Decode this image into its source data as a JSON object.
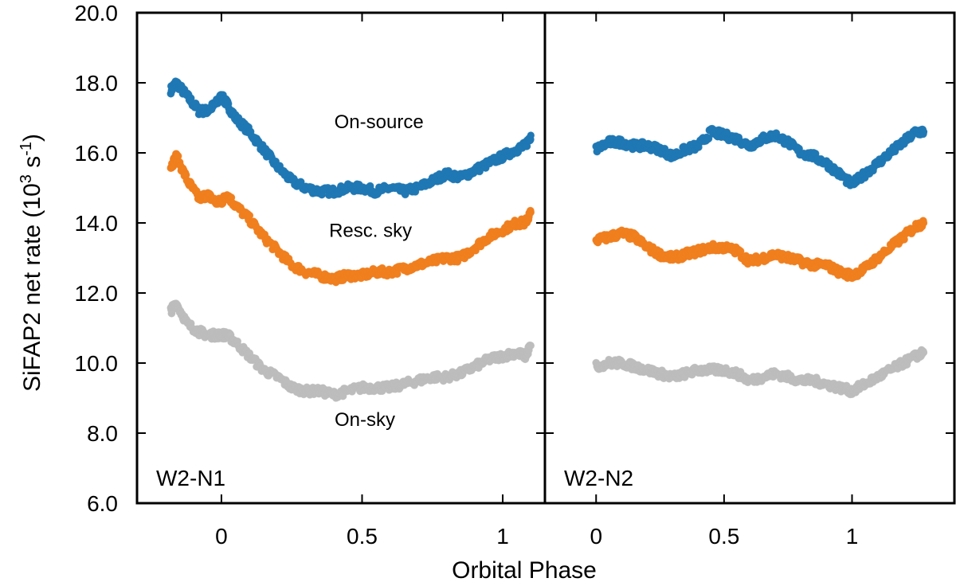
{
  "chart_data": {
    "type": "scatter",
    "ylabel": "SiFAP2 net rate (10",
    "ylabel_exp1": "3",
    "ylabel_unit": " s",
    "ylabel_exp2": "-1",
    "ylabel_close": ")",
    "xlabel": "Orbital Phase",
    "ylim": [
      6.0,
      20.0
    ],
    "yticks": [
      6.0,
      8.0,
      10.0,
      12.0,
      14.0,
      16.0,
      18.0,
      20.0
    ],
    "ytick_labels": [
      "6.0",
      "8.0",
      "10.0",
      "12.0",
      "14.0",
      "16.0",
      "18.0",
      "20.0"
    ],
    "colors": {
      "On-source": "#1f78b4",
      "Resc. sky": "#f07f1e",
      "On-sky": "#bdbdbd"
    },
    "panels": [
      {
        "label": "W2-N1",
        "xlim": [
          -0.3,
          1.15
        ],
        "xticks": [
          0,
          0.5,
          1
        ],
        "xtick_labels": [
          "0",
          "0.5",
          "1"
        ],
        "annotations": [
          {
            "text": "On-source",
            "x": 0.56,
            "y": 16.7
          },
          {
            "text": "Resc. sky",
            "x": 0.53,
            "y": 13.6
          },
          {
            "text": "On-sky",
            "x": 0.51,
            "y": 8.2
          }
        ],
        "series": [
          {
            "name": "On-source",
            "x": [
              -0.18,
              -0.16,
              -0.12,
              -0.08,
              -0.05,
              -0.02,
              0.0,
              0.02,
              0.05,
              0.1,
              0.15,
              0.2,
              0.25,
              0.3,
              0.35,
              0.4,
              0.45,
              0.5,
              0.55,
              0.6,
              0.65,
              0.7,
              0.75,
              0.8,
              0.85,
              0.9,
              0.95,
              1.0,
              1.05,
              1.08,
              1.1
            ],
            "y": [
              17.8,
              18.0,
              17.6,
              17.2,
              17.2,
              17.4,
              17.6,
              17.4,
              17.0,
              16.6,
              16.1,
              15.6,
              15.2,
              15.0,
              14.9,
              14.9,
              15.0,
              15.0,
              14.9,
              15.0,
              14.9,
              15.0,
              15.2,
              15.4,
              15.3,
              15.5,
              15.7,
              15.9,
              16.1,
              16.2,
              16.5
            ]
          },
          {
            "name": "Resc. sky",
            "x": [
              -0.18,
              -0.16,
              -0.12,
              -0.08,
              -0.05,
              -0.02,
              0.0,
              0.02,
              0.05,
              0.1,
              0.15,
              0.2,
              0.25,
              0.3,
              0.35,
              0.4,
              0.45,
              0.5,
              0.55,
              0.6,
              0.65,
              0.7,
              0.75,
              0.8,
              0.85,
              0.9,
              0.95,
              1.0,
              1.05,
              1.08,
              1.1
            ],
            "y": [
              15.6,
              15.9,
              15.2,
              14.7,
              14.8,
              14.6,
              14.6,
              14.8,
              14.5,
              14.1,
              13.6,
              13.2,
              12.8,
              12.6,
              12.5,
              12.4,
              12.5,
              12.5,
              12.6,
              12.6,
              12.7,
              12.8,
              12.9,
              13.0,
              13.0,
              13.3,
              13.6,
              13.8,
              14.0,
              14.0,
              14.3
            ]
          },
          {
            "name": "On-sky",
            "x": [
              -0.18,
              -0.16,
              -0.12,
              -0.08,
              -0.05,
              -0.02,
              0.0,
              0.02,
              0.05,
              0.1,
              0.15,
              0.2,
              0.25,
              0.3,
              0.35,
              0.4,
              0.45,
              0.5,
              0.55,
              0.6,
              0.65,
              0.7,
              0.75,
              0.8,
              0.85,
              0.9,
              0.95,
              1.0,
              1.05,
              1.08,
              1.1
            ],
            "y": [
              11.5,
              11.7,
              11.1,
              10.9,
              10.8,
              10.8,
              10.8,
              10.8,
              10.6,
              10.2,
              9.8,
              9.6,
              9.3,
              9.2,
              9.2,
              9.1,
              9.2,
              9.3,
              9.3,
              9.3,
              9.4,
              9.5,
              9.6,
              9.6,
              9.7,
              9.9,
              10.1,
              10.2,
              10.3,
              10.2,
              10.5
            ]
          }
        ]
      },
      {
        "label": "W2-N2",
        "xlim": [
          -0.2,
          1.4
        ],
        "xticks": [
          0,
          0.5,
          1
        ],
        "xtick_labels": [
          "0",
          "0.5",
          "1"
        ],
        "annotations": [],
        "series": [
          {
            "name": "On-source",
            "x": [
              0.0,
              0.05,
              0.1,
              0.15,
              0.2,
              0.25,
              0.3,
              0.35,
              0.4,
              0.45,
              0.5,
              0.55,
              0.6,
              0.65,
              0.7,
              0.75,
              0.8,
              0.85,
              0.9,
              0.95,
              1.0,
              1.05,
              1.1,
              1.15,
              1.2,
              1.25,
              1.28
            ],
            "y": [
              16.1,
              16.3,
              16.3,
              16.2,
              16.2,
              16.1,
              15.9,
              16.1,
              16.2,
              16.6,
              16.5,
              16.4,
              16.2,
              16.4,
              16.5,
              16.3,
              16.0,
              15.9,
              15.7,
              15.4,
              15.1,
              15.4,
              15.7,
              16.0,
              16.3,
              16.6,
              16.6
            ]
          },
          {
            "name": "Resc. sky",
            "x": [
              0.0,
              0.05,
              0.1,
              0.15,
              0.2,
              0.25,
              0.3,
              0.35,
              0.4,
              0.45,
              0.5,
              0.55,
              0.6,
              0.65,
              0.7,
              0.75,
              0.8,
              0.85,
              0.9,
              0.95,
              1.0,
              1.05,
              1.1,
              1.15,
              1.2,
              1.25,
              1.28
            ],
            "y": [
              13.5,
              13.6,
              13.7,
              13.6,
              13.3,
              13.1,
              13.0,
              13.1,
              13.2,
              13.3,
              13.3,
              13.2,
              12.9,
              13.0,
              13.1,
              13.0,
              12.9,
              12.8,
              12.8,
              12.6,
              12.5,
              12.7,
              13.0,
              13.3,
              13.6,
              13.9,
              14.0
            ]
          },
          {
            "name": "On-sky",
            "x": [
              0.0,
              0.05,
              0.1,
              0.15,
              0.2,
              0.25,
              0.3,
              0.35,
              0.4,
              0.45,
              0.5,
              0.55,
              0.6,
              0.65,
              0.7,
              0.75,
              0.8,
              0.85,
              0.9,
              0.95,
              1.0,
              1.05,
              1.1,
              1.15,
              1.2,
              1.25,
              1.28
            ],
            "y": [
              9.9,
              10.0,
              10.0,
              9.9,
              9.8,
              9.7,
              9.6,
              9.7,
              9.8,
              9.8,
              9.8,
              9.7,
              9.5,
              9.6,
              9.7,
              9.6,
              9.5,
              9.5,
              9.4,
              9.3,
              9.2,
              9.4,
              9.6,
              9.8,
              10.0,
              10.2,
              10.3
            ]
          }
        ]
      }
    ]
  }
}
